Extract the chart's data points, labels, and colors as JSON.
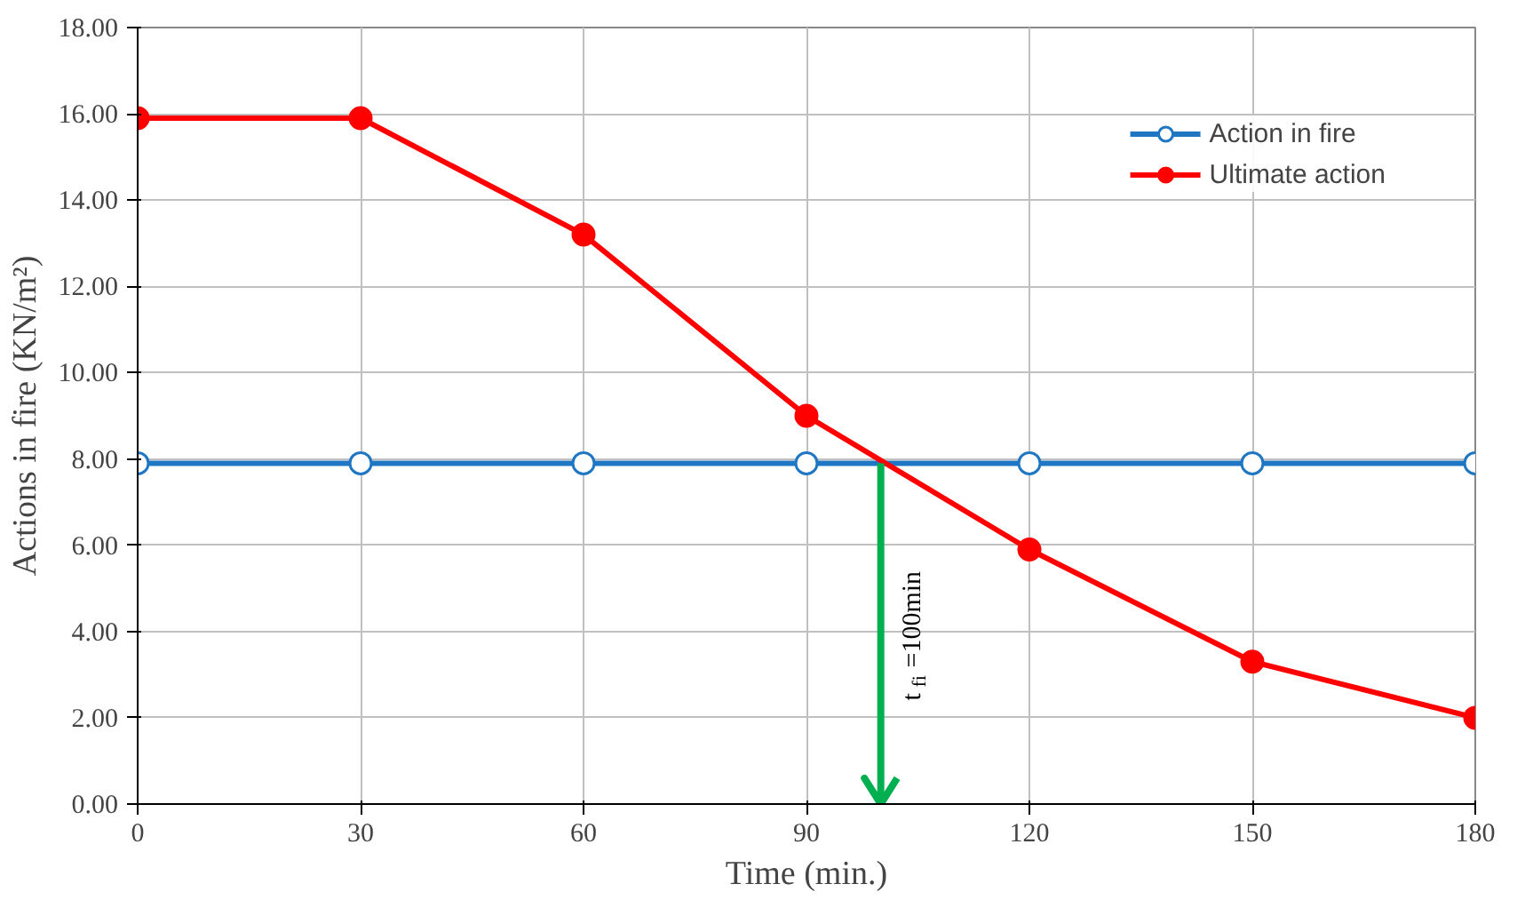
{
  "chart_data": {
    "type": "line",
    "xlabel": "Time (min.)",
    "ylabel": "Actions in fire (KN/m²)",
    "x": [
      0,
      30,
      60,
      90,
      120,
      150,
      180
    ],
    "series": [
      {
        "name": "Action in fire",
        "color": "#1f77c4",
        "values": [
          7.9,
          7.9,
          7.9,
          7.9,
          7.9,
          7.9,
          7.9
        ]
      },
      {
        "name": "Ultimate action",
        "color": "#ff0000",
        "values": [
          15.9,
          15.9,
          13.2,
          9.0,
          5.9,
          3.3,
          2.0
        ]
      }
    ],
    "xlim": [
      0,
      180
    ],
    "xticks": [
      0,
      30,
      60,
      90,
      120,
      150,
      180
    ],
    "ylim": [
      0,
      18
    ],
    "yticks": [
      {
        "value": 0,
        "label": "0.00"
      },
      {
        "value": 2,
        "label": "2.00"
      },
      {
        "value": 4,
        "label": "4.00"
      },
      {
        "value": 6,
        "label": "6.00"
      },
      {
        "value": 8,
        "label": "8.00"
      },
      {
        "value": 10,
        "label": "10.00"
      },
      {
        "value": 12,
        "label": "12.00"
      },
      {
        "value": 14,
        "label": "14.00"
      },
      {
        "value": 16,
        "label": "16.00"
      },
      {
        "value": 18,
        "label": "18.00"
      }
    ],
    "ref_lines": [
      {
        "axis": "x",
        "value": 100,
        "label": "t$_{fi}$=100min",
        "color": "#00b050"
      }
    ],
    "grid": true,
    "legend": "top right",
    "marker": "circle",
    "line_style": "solid"
  }
}
